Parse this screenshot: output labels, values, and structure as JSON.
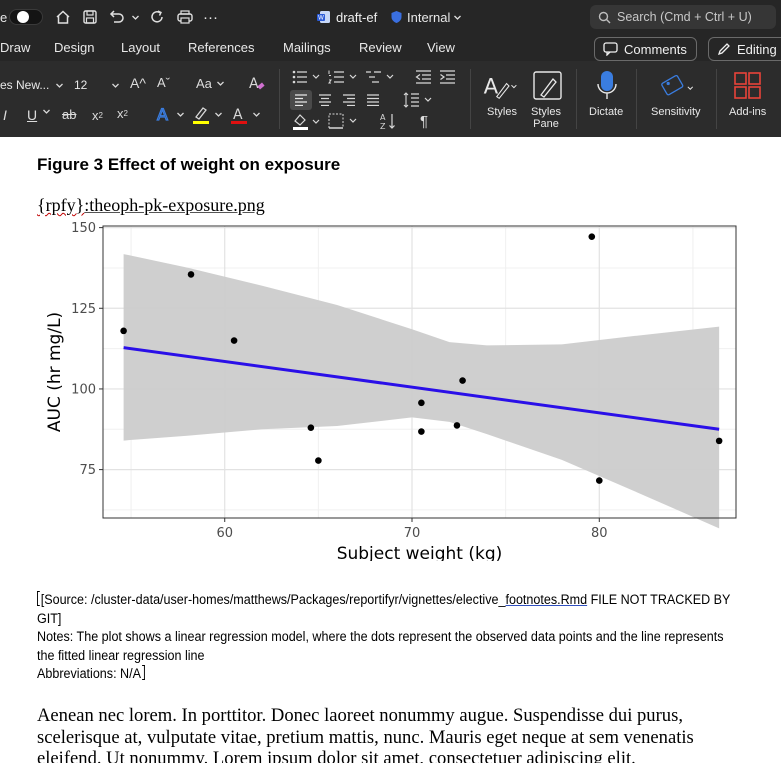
{
  "titlebar": {
    "left_fragment": "e",
    "more": "···",
    "doc_name": "draft-ef",
    "sensitivity_label": "Internal",
    "search_placeholder": "Search (Cmd + Ctrl + U)"
  },
  "menu": {
    "tabs": [
      "Draw",
      "Design",
      "Layout",
      "References",
      "Mailings",
      "Review",
      "View"
    ],
    "comments_label": "Comments",
    "editing_label": "Editing"
  },
  "ribbon": {
    "font_name": "es New...",
    "font_size": "12",
    "grow_font": "A^",
    "shrink_font": "Aˇ",
    "change_case": "Aa",
    "styles_label": "Styles",
    "styles_pane_label": "Styles\nPane",
    "dictate_label": "Dictate",
    "sensitivity_label": "Sensitivity",
    "addins_label": "Add-ins",
    "colors": {
      "highlight": "#ffff00",
      "font_color": "#e01010",
      "text_effect": "#3a7de0"
    }
  },
  "document": {
    "figure_title": "Figure 3 Effect of weight on exposure",
    "field_code_prefix": "{rpfy}",
    "field_code_file": ":theoph-pk-exposure.png",
    "footnote_source_a": "[Source: /cluster-data/user-homes/matthews/Packages/reportifyr/vignettes/elective_",
    "footnote_source_b": "footnotes.Rmd",
    "footnote_source_c": " FILE NOT TRACKED BY GIT]",
    "footnote_notes": "Notes: The plot shows a linear regression model, where the dots represent the observed data points and the line represents the fitted linear regression line",
    "footnote_abbrev": "Abbreviations: N/A",
    "body_paragraph": "Aenean nec lorem. In porttitor. Donec laoreet nonummy augue. Suspendisse dui purus, scelerisque at, vulputate vitae, pretium mattis, nunc. Mauris eget neque at sem venenatis eleifend. Ut nonummy. Lorem ipsum dolor sit amet, consectetuer adipiscing elit."
  },
  "chart_data": {
    "type": "scatter",
    "xlabel": "Subject weight (kg)",
    "ylabel": "AUC (hr mg/L)",
    "xlim": [
      53.5,
      87.3
    ],
    "ylim": [
      60,
      150.5
    ],
    "x_ticks": [
      60,
      70,
      80
    ],
    "y_ticks": [
      75,
      100,
      125,
      150
    ],
    "grid": true,
    "points": [
      {
        "x": 54.6,
        "y": 118.0
      },
      {
        "x": 58.2,
        "y": 135.5
      },
      {
        "x": 60.5,
        "y": 115.0
      },
      {
        "x": 64.6,
        "y": 88.0
      },
      {
        "x": 65.0,
        "y": 77.8
      },
      {
        "x": 70.5,
        "y": 95.7
      },
      {
        "x": 70.5,
        "y": 86.8
      },
      {
        "x": 72.4,
        "y": 88.7
      },
      {
        "x": 72.7,
        "y": 102.6
      },
      {
        "x": 79.6,
        "y": 147.2
      },
      {
        "x": 80.0,
        "y": 71.6
      },
      {
        "x": 86.4,
        "y": 83.9
      }
    ],
    "fit_line": {
      "x": [
        54.6,
        86.4
      ],
      "y": [
        112.8,
        87.5
      ],
      "color": "#2a0fe8"
    },
    "confidence_band": {
      "x": [
        54.6,
        58,
        62,
        66,
        70,
        72,
        74,
        78,
        82,
        86.4
      ],
      "upper": [
        141.8,
        137.6,
        132.0,
        126.0,
        118.5,
        114.5,
        113.5,
        113.8,
        116.5,
        119.3
      ],
      "lower": [
        84.0,
        85.5,
        87.5,
        88.5,
        91.2,
        89.8,
        86.0,
        78.0,
        68.0,
        56.8
      ],
      "color": "#cccccc"
    }
  }
}
